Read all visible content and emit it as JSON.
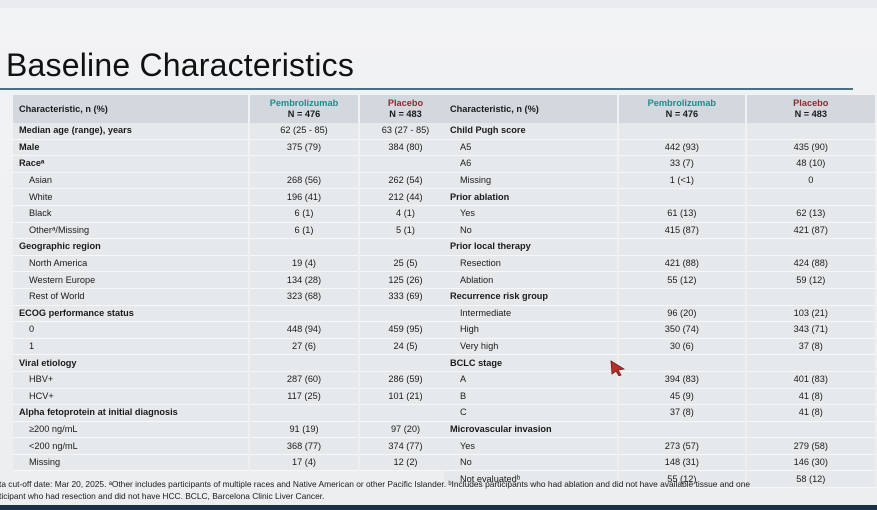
{
  "title": "Baseline Characteristics",
  "left_table": {
    "header": {
      "characteristic": "Characteristic, n (%)",
      "arm1_name": "Pembrolizumab",
      "arm1_n": "N = 476",
      "arm2_name": "Placebo",
      "arm2_n": "N = 483"
    },
    "rows": [
      {
        "label": "Median age (range), years",
        "a": "62 (25 - 85)",
        "b": "63 (27 - 85)",
        "type": "head"
      },
      {
        "label": "Male",
        "a": "375 (79)",
        "b": "384 (80)",
        "type": "head"
      },
      {
        "label": "Raceᵃ",
        "a": "",
        "b": "",
        "type": "head"
      },
      {
        "label": "Asian",
        "a": "268 (56)",
        "b": "262 (54)",
        "type": "sub"
      },
      {
        "label": "White",
        "a": "196 (41)",
        "b": "212 (44)",
        "type": "sub"
      },
      {
        "label": "Black",
        "a": "6 (1)",
        "b": "4 (1)",
        "type": "sub"
      },
      {
        "label": "Otherᵃ/Missing",
        "a": "6 (1)",
        "b": "5 (1)",
        "type": "sub"
      },
      {
        "label": "Geographic region",
        "a": "",
        "b": "",
        "type": "head"
      },
      {
        "label": "North America",
        "a": "19 (4)",
        "b": "25 (5)",
        "type": "sub"
      },
      {
        "label": "Western Europe",
        "a": "134 (28)",
        "b": "125 (26)",
        "type": "sub"
      },
      {
        "label": "Rest of World",
        "a": "323 (68)",
        "b": "333 (69)",
        "type": "sub"
      },
      {
        "label": "ECOG performance status",
        "a": "",
        "b": "",
        "type": "head"
      },
      {
        "label": "0",
        "a": "448 (94)",
        "b": "459 (95)",
        "type": "sub"
      },
      {
        "label": "1",
        "a": "27 (6)",
        "b": "24 (5)",
        "type": "sub"
      },
      {
        "label": "Viral etiology",
        "a": "",
        "b": "",
        "type": "head"
      },
      {
        "label": "HBV+",
        "a": "287 (60)",
        "b": "286 (59)",
        "type": "sub"
      },
      {
        "label": "HCV+",
        "a": "117 (25)",
        "b": "101 (21)",
        "type": "sub"
      },
      {
        "label": "Alpha fetoprotein at initial diagnosis",
        "a": "",
        "b": "",
        "type": "head"
      },
      {
        "label": "≥200 ng/mL",
        "a": "91 (19)",
        "b": "97 (20)",
        "type": "sub"
      },
      {
        "label": "<200 ng/mL",
        "a": "368 (77)",
        "b": "374 (77)",
        "type": "sub"
      },
      {
        "label": "Missing",
        "a": "17 (4)",
        "b": "12 (2)",
        "type": "sub"
      }
    ]
  },
  "right_table": {
    "header": {
      "characteristic": "Characteristic, n (%)",
      "arm1_name": "Pembrolizumab",
      "arm1_n": "N = 476",
      "arm2_name": "Placebo",
      "arm2_n": "N = 483"
    },
    "rows": [
      {
        "label": "Child Pugh score",
        "a": "",
        "b": "",
        "type": "head"
      },
      {
        "label": "A5",
        "a": "442 (93)",
        "b": "435 (90)",
        "type": "sub"
      },
      {
        "label": "A6",
        "a": "33 (7)",
        "b": "48 (10)",
        "type": "sub"
      },
      {
        "label": "Missing",
        "a": "1 (<1)",
        "b": "0",
        "type": "sub"
      },
      {
        "label": "Prior ablation",
        "a": "",
        "b": "",
        "type": "head"
      },
      {
        "label": "Yes",
        "a": "61 (13)",
        "b": "62 (13)",
        "type": "sub"
      },
      {
        "label": "No",
        "a": "415 (87)",
        "b": "421 (87)",
        "type": "sub"
      },
      {
        "label": "Prior local therapy",
        "a": "",
        "b": "",
        "type": "head"
      },
      {
        "label": "Resection",
        "a": "421 (88)",
        "b": "424 (88)",
        "type": "sub"
      },
      {
        "label": "Ablation",
        "a": "55 (12)",
        "b": "59 (12)",
        "type": "sub"
      },
      {
        "label": "Recurrence risk group",
        "a": "",
        "b": "",
        "type": "head"
      },
      {
        "label": "Intermediate",
        "a": "96 (20)",
        "b": "103 (21)",
        "type": "sub"
      },
      {
        "label": "High",
        "a": "350 (74)",
        "b": "343 (71)",
        "type": "sub"
      },
      {
        "label": "Very high",
        "a": "30 (6)",
        "b": "37 (8)",
        "type": "sub"
      },
      {
        "label": "BCLC stage",
        "a": "",
        "b": "",
        "type": "head"
      },
      {
        "label": "A",
        "a": "394 (83)",
        "b": "401 (83)",
        "type": "sub"
      },
      {
        "label": "B",
        "a": "45 (9)",
        "b": "41 (8)",
        "type": "sub"
      },
      {
        "label": "C",
        "a": "37 (8)",
        "b": "41 (8)",
        "type": "sub"
      },
      {
        "label": "Microvascular invasion",
        "a": "",
        "b": "",
        "type": "head"
      },
      {
        "label": "Yes",
        "a": "273 (57)",
        "b": "279 (58)",
        "type": "sub"
      },
      {
        "label": "No",
        "a": "148 (31)",
        "b": "146 (30)",
        "type": "sub"
      },
      {
        "label": "Not evaluatedᵇ",
        "a": "55 (12)",
        "b": "58 (12)",
        "type": "sub"
      }
    ]
  },
  "footnote_line1": "ta cut-off date: Mar 20, 2025. ᵃOther includes participants of multiple races and Native American or other Pacific Islander. ᵇIncludes participants who had ablation and did not have available tissue and one",
  "footnote_line2": "ticipant who had resection and did not have HCC. BCLC, Barcelona Clinic Liver Cancer.",
  "colors": {
    "pembrolizumab": "#1f8a8c",
    "placebo": "#8a2b2f",
    "header_fill": "#d3d8de",
    "row_fill": "#e6e9ec",
    "title_rule": "#4a6f86",
    "cursor": "#b8322d"
  },
  "cursor_icon": "mouse-pointer-icon"
}
